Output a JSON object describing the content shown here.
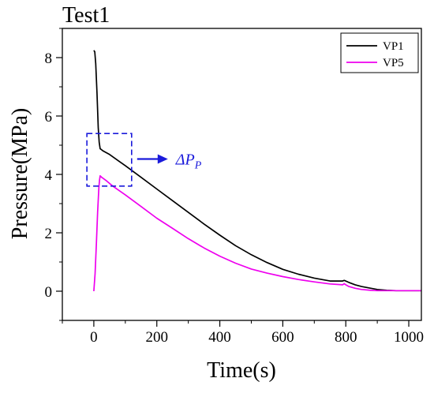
{
  "chart_data": {
    "type": "line",
    "title": "Test1",
    "xlabel": "Time(s)",
    "ylabel": "Pressure(MPa)",
    "xlim": [
      -100,
      1040
    ],
    "ylim": [
      -1,
      9
    ],
    "xticks": [
      0,
      200,
      400,
      600,
      800,
      1000
    ],
    "yticks": [
      0,
      2,
      4,
      6,
      8
    ],
    "grid": false,
    "legend_position": "top-right",
    "annotation": {
      "main": "ΔP",
      "sub": "P",
      "box": {
        "x": [
          -22,
          120
        ],
        "y": [
          3.6,
          5.4
        ]
      }
    },
    "series": [
      {
        "name": "VP1",
        "color": "#000000",
        "x": [
          0,
          3,
          6,
          10,
          14,
          17,
          20,
          30,
          50,
          80,
          100,
          150,
          200,
          250,
          300,
          350,
          400,
          450,
          500,
          550,
          600,
          650,
          700,
          750,
          790,
          795,
          800,
          810,
          830,
          850,
          880,
          900,
          930,
          960,
          1000,
          1040
        ],
        "y": [
          8.25,
          8.2,
          7.8,
          6.8,
          5.6,
          5.1,
          4.88,
          4.8,
          4.68,
          4.45,
          4.3,
          3.9,
          3.5,
          3.1,
          2.7,
          2.3,
          1.92,
          1.56,
          1.25,
          0.98,
          0.75,
          0.58,
          0.45,
          0.35,
          0.35,
          0.37,
          0.35,
          0.3,
          0.22,
          0.16,
          0.1,
          0.06,
          0.03,
          0.02,
          0.02,
          0.02
        ]
      },
      {
        "name": "VP5",
        "color": "#ee00ee",
        "x": [
          0,
          4,
          8,
          12,
          16,
          18,
          20,
          25,
          40,
          60,
          100,
          150,
          200,
          250,
          300,
          350,
          400,
          450,
          500,
          550,
          600,
          650,
          700,
          750,
          790,
          795,
          800,
          810,
          830,
          850,
          880,
          900,
          930,
          960,
          1000,
          1040
        ],
        "y": [
          0.0,
          0.6,
          1.6,
          2.7,
          3.55,
          3.8,
          3.95,
          3.9,
          3.78,
          3.6,
          3.3,
          2.9,
          2.5,
          2.15,
          1.8,
          1.48,
          1.2,
          0.96,
          0.76,
          0.62,
          0.5,
          0.4,
          0.32,
          0.25,
          0.22,
          0.26,
          0.22,
          0.16,
          0.1,
          0.06,
          0.03,
          0.02,
          0.02,
          0.02,
          0.02,
          0.02
        ]
      }
    ]
  }
}
